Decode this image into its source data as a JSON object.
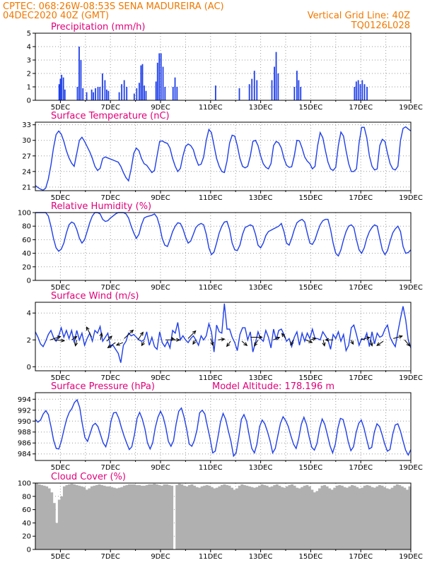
{
  "header": {
    "line1_left": "CPTEC:   068:26W-08:53S   SENA MADUREIRA (AC)",
    "line2_left": "04DEC2020 40Z (GMT)",
    "line2_right": "Vertical Grid Line: 40Z",
    "line3_right": "TQ0126L028"
  },
  "colors": {
    "header": "#f07800",
    "panel_title": "#e0007a",
    "series": "#1f3fe8",
    "cloud": "#b0b0b0",
    "grid": "#9a9a9a",
    "wind_arrow": "#000000"
  },
  "x_tick_labels": [
    "5DEC",
    "7DEC",
    "9DEC",
    "11DEC",
    "13DEC",
    "15DEC",
    "17DEC",
    "19DEC"
  ],
  "chart_data": [
    {
      "type": "bar",
      "id": "precip",
      "title": "Precipitation (mm/h)",
      "ylim": [
        0,
        5
      ],
      "yticks": [
        0,
        1,
        2,
        3,
        4,
        5
      ],
      "grid": true,
      "x_range_days": [
        4.0,
        19.0
      ],
      "bars": [
        [
          4.95,
          1.2
        ],
        [
          5.0,
          1.6
        ],
        [
          5.05,
          1.9
        ],
        [
          5.12,
          1.7
        ],
        [
          5.18,
          0.8
        ],
        [
          5.68,
          1.0
        ],
        [
          5.75,
          4.0
        ],
        [
          5.82,
          3.0
        ],
        [
          5.9,
          0.9
        ],
        [
          6.05,
          0.6
        ],
        [
          6.25,
          0.8
        ],
        [
          6.32,
          0.6
        ],
        [
          6.4,
          0.9
        ],
        [
          6.5,
          1.0
        ],
        [
          6.58,
          1.0
        ],
        [
          6.68,
          2.0
        ],
        [
          6.78,
          1.5
        ],
        [
          6.85,
          0.8
        ],
        [
          6.92,
          0.7
        ],
        [
          7.35,
          0.6
        ],
        [
          7.45,
          1.2
        ],
        [
          7.55,
          1.5
        ],
        [
          7.65,
          1.0
        ],
        [
          7.95,
          0.5
        ],
        [
          8.05,
          0.9
        ],
        [
          8.15,
          1.3
        ],
        [
          8.22,
          2.6
        ],
        [
          8.28,
          2.7
        ],
        [
          8.35,
          1.1
        ],
        [
          8.42,
          0.7
        ],
        [
          8.82,
          1.4
        ],
        [
          8.88,
          2.8
        ],
        [
          8.95,
          3.5
        ],
        [
          9.02,
          3.5
        ],
        [
          9.1,
          2.5
        ],
        [
          9.18,
          1.0
        ],
        [
          9.5,
          1.0
        ],
        [
          9.58,
          1.7
        ],
        [
          9.66,
          1.0
        ],
        [
          11.2,
          1.1
        ],
        [
          12.15,
          0.9
        ],
        [
          12.55,
          1.2
        ],
        [
          12.65,
          1.6
        ],
        [
          12.75,
          2.2
        ],
        [
          12.85,
          1.5
        ],
        [
          13.45,
          1.5
        ],
        [
          13.55,
          2.5
        ],
        [
          13.62,
          3.6
        ],
        [
          13.7,
          2.0
        ],
        [
          14.35,
          1.0
        ],
        [
          14.45,
          2.2
        ],
        [
          14.52,
          1.5
        ],
        [
          14.6,
          1.0
        ],
        [
          16.75,
          1.0
        ],
        [
          16.82,
          1.4
        ],
        [
          16.9,
          1.5
        ],
        [
          16.98,
          1.2
        ],
        [
          17.06,
          1.5
        ],
        [
          17.15,
          1.2
        ],
        [
          17.25,
          1.0
        ]
      ]
    },
    {
      "type": "line",
      "id": "temperature",
      "title": "Surface Temperature (nC)",
      "ylim": [
        20.3,
        33.5
      ],
      "yticks": [
        21,
        24,
        27,
        30,
        33
      ],
      "grid": true,
      "x_range_days": [
        4.0,
        19.0
      ],
      "values": [
        21.3,
        20.9,
        20.6,
        20.4,
        20.8,
        22.5,
        25.2,
        28.5,
        31.1,
        31.8,
        31.2,
        29.8,
        28.0,
        26.6,
        25.6,
        25.0,
        27.5,
        30.0,
        30.6,
        29.8,
        28.8,
        27.8,
        26.5,
        25.0,
        24.2,
        24.6,
        26.5,
        26.8,
        26.6,
        26.4,
        26.2,
        26.0,
        25.8,
        25.0,
        23.8,
        22.8,
        22.2,
        24.5,
        27.5,
        28.5,
        28.0,
        26.5,
        25.5,
        25.2,
        24.5,
        23.8,
        24.2,
        27.0,
        29.8,
        29.9,
        29.6,
        29.4,
        28.5,
        26.5,
        25.0,
        24.0,
        24.6,
        27.0,
        28.8,
        29.3,
        29.0,
        28.2,
        26.5,
        25.2,
        25.4,
        26.8,
        30.0,
        32.1,
        31.5,
        29.0,
        26.5,
        25.0,
        24.0,
        23.8,
        26.0,
        29.5,
        31.0,
        30.8,
        29.0,
        26.5,
        25.0,
        24.7,
        25.0,
        27.0,
        29.8,
        30.0,
        29.0,
        27.0,
        25.5,
        24.8,
        24.5,
        25.5,
        29.0,
        29.8,
        29.5,
        28.5,
        26.5,
        25.2,
        24.8,
        24.9,
        27.0,
        30.0,
        29.9,
        28.5,
        26.8,
        26.0,
        25.5,
        24.5,
        25.0,
        29.0,
        31.5,
        30.5,
        28.0,
        25.8,
        24.5,
        24.2,
        24.8,
        29.0,
        31.6,
        30.8,
        28.0,
        25.5,
        24.0,
        24.0,
        24.5,
        29.5,
        32.5,
        32.5,
        30.5,
        27.0,
        25.0,
        24.3,
        24.5,
        29.0,
        30.2,
        29.8,
        27.5,
        25.5,
        24.5,
        24.3,
        25.0,
        30.0,
        32.3,
        32.6,
        32.2,
        31.8
      ]
    },
    {
      "type": "line",
      "id": "humidity",
      "title": "Relative Humidity (%)",
      "ylim": [
        0,
        100
      ],
      "yticks": [
        0,
        20,
        40,
        60,
        80,
        100
      ],
      "grid": true,
      "x_range_days": [
        4.0,
        19.0
      ],
      "values": [
        100,
        100,
        100,
        100,
        100,
        95,
        80,
        62,
        48,
        43,
        46,
        55,
        70,
        82,
        86,
        84,
        75,
        62,
        55,
        60,
        72,
        85,
        95,
        100,
        100,
        98,
        90,
        87,
        88,
        92,
        95,
        98,
        100,
        100,
        100,
        98,
        92,
        80,
        70,
        62,
        68,
        82,
        92,
        94,
        95,
        96,
        98,
        93,
        80,
        62,
        52,
        50,
        60,
        72,
        80,
        85,
        84,
        76,
        64,
        55,
        58,
        68,
        78,
        82,
        84,
        82,
        68,
        48,
        38,
        42,
        55,
        70,
        80,
        86,
        87,
        75,
        55,
        45,
        44,
        52,
        68,
        78,
        80,
        82,
        80,
        68,
        52,
        48,
        55,
        66,
        72,
        74,
        76,
        78,
        80,
        84,
        72,
        55,
        52,
        62,
        75,
        85,
        88,
        90,
        86,
        70,
        55,
        53,
        60,
        72,
        82,
        88,
        90,
        90,
        75,
        55,
        40,
        36,
        45,
        60,
        72,
        80,
        82,
        78,
        60,
        45,
        40,
        48,
        62,
        72,
        78,
        82,
        80,
        62,
        45,
        38,
        44,
        58,
        70,
        76,
        80,
        72,
        50,
        40,
        41,
        45
      ]
    },
    {
      "type": "line",
      "id": "wind",
      "title": "Surface Wind (m/s)",
      "ylim": [
        -0.3,
        4.8
      ],
      "yticks": [
        0,
        2,
        4
      ],
      "grid": true,
      "x_range_days": [
        4.0,
        19.0
      ],
      "values": [
        2.6,
        2.2,
        1.7,
        1.5,
        1.9,
        2.4,
        2.7,
        2.2,
        1.9,
        2.3,
        2.9,
        2.2,
        2.7,
        2.1,
        2.7,
        1.8,
        2.7,
        2.0,
        2.5,
        1.6,
        2.1,
        2.5,
        1.9,
        2.7,
        2.5,
        3.0,
        1.9,
        2.2,
        2.5,
        1.5,
        1.6,
        1.3,
        1.0,
        0.3,
        1.6,
        1.9,
        2.5,
        2.3,
        2.4,
        2.2,
        2.0,
        1.9,
        2.0,
        2.6,
        1.6,
        2.2,
        1.5,
        1.3,
        2.6,
        1.8,
        1.5,
        1.9,
        1.4,
        2.7,
        2.5,
        3.3,
        2.0,
        2.3,
        2.0,
        1.8,
        2.1,
        2.3,
        2.0,
        1.6,
        2.3,
        2.0,
        2.3,
        3.2,
        2.6,
        1.1,
        3.1,
        2.6,
        2.5,
        4.7,
        2.8,
        2.8,
        2.2,
        1.8,
        1.2,
        2.4,
        2.9,
        2.9,
        2.0,
        2.6,
        1.1,
        1.8,
        2.6,
        2.1,
        1.9,
        2.7,
        2.2,
        1.4,
        2.8,
        2.0,
        2.7,
        2.8,
        2.4,
        1.9,
        2.1,
        1.5,
        2.2,
        2.6,
        1.6,
        2.5,
        1.9,
        2.5,
        2.1,
        2.8,
        2.1,
        2.1,
        2.0,
        2.6,
        2.3,
        2.0,
        1.3,
        2.4,
        2.1,
        2.6,
        1.9,
        2.4,
        1.2,
        1.6,
        2.9,
        3.1,
        2.4,
        1.6,
        2.1,
        2.0,
        2.5,
        1.5,
        2.6,
        1.7,
        2.5,
        2.2,
        2.3,
        2.8,
        3.1,
        2.2,
        1.8,
        1.5,
        2.6,
        3.6,
        4.5,
        3.5,
        2.0,
        1.4
      ],
      "arrows": [
        [
          4.6,
          2.0,
          0.8,
          0.4
        ],
        [
          4.75,
          2.0,
          0.8,
          -0.1
        ],
        [
          5.45,
          2.0,
          0.4,
          0.4
        ],
        [
          5.65,
          2.0,
          -0.1,
          -0.7
        ],
        [
          6.25,
          2.2,
          -0.4,
          1.2
        ],
        [
          6.6,
          2.0,
          0.1,
          0.8
        ],
        [
          6.85,
          1.9,
          0.4,
          0.6
        ],
        [
          7.2,
          1.8,
          -0.6,
          -0.6
        ],
        [
          7.55,
          2.1,
          0.7,
          1.0
        ],
        [
          7.5,
          1.8,
          -0.5,
          -0.3
        ],
        [
          8.1,
          2.0,
          0.4,
          0.9
        ],
        [
          8.35,
          1.9,
          -0.2,
          -0.5
        ],
        [
          9.2,
          2.0,
          1.1,
          0.0
        ],
        [
          9.5,
          2.0,
          -0.1,
          0.3
        ],
        [
          10.1,
          2.1,
          0.6,
          0.9
        ],
        [
          10.4,
          2.0,
          -0.2,
          -0.5
        ],
        [
          11.0,
          2.1,
          0.2,
          -0.8
        ],
        [
          11.3,
          2.0,
          0.5,
          0.1
        ],
        [
          11.8,
          1.9,
          -0.3,
          -0.6
        ],
        [
          12.25,
          1.9,
          0.4,
          -0.5
        ],
        [
          12.6,
          2.2,
          0.9,
          0.0
        ],
        [
          12.9,
          2.0,
          -0.3,
          -0.7
        ],
        [
          13.5,
          2.0,
          0.5,
          0.3
        ],
        [
          14.0,
          2.1,
          -0.3,
          0.6
        ],
        [
          14.3,
          2.0,
          -0.2,
          -0.6
        ],
        [
          14.8,
          2.0,
          0.5,
          -0.3
        ],
        [
          15.0,
          2.0,
          0.4,
          0.2
        ],
        [
          15.5,
          2.0,
          0.1,
          -0.7
        ],
        [
          15.9,
          2.0,
          -0.6,
          0.0
        ],
        [
          16.6,
          2.0,
          0.2,
          -0.5
        ],
        [
          17.0,
          2.0,
          0.7,
          0.3
        ],
        [
          17.4,
          2.0,
          0.1,
          -0.7
        ],
        [
          17.9,
          1.9,
          -0.5,
          -0.5
        ],
        [
          18.3,
          2.1,
          0.7,
          0.3
        ],
        [
          18.75,
          2.0,
          0.4,
          -0.7
        ]
      ]
    },
    {
      "type": "line",
      "id": "pressure",
      "title": "Surface Pressure (hPa)",
      "annotation": "Model Altitude: 178.196 m",
      "ylim": [
        982.8,
        995.2
      ],
      "yticks": [
        984,
        986,
        988,
        990,
        992,
        994
      ],
      "grid": true,
      "x_range_days": [
        4.0,
        19.0
      ],
      "values": [
        990.3,
        989.8,
        990.2,
        991.3,
        991.9,
        991.2,
        989.0,
        986.5,
        985.0,
        984.9,
        986.4,
        988.5,
        990.4,
        991.6,
        992.3,
        993.4,
        993.9,
        992.5,
        989.5,
        987.0,
        986.3,
        987.7,
        989.2,
        989.6,
        989.0,
        987.5,
        986.0,
        985.3,
        987.0,
        990.0,
        991.5,
        991.6,
        990.5,
        988.8,
        987.3,
        986.0,
        984.8,
        985.3,
        987.5,
        990.5,
        991.6,
        990.4,
        988.6,
        986.0,
        984.9,
        986.0,
        988.8,
        990.7,
        991.8,
        990.8,
        988.9,
        986.3,
        985.4,
        986.4,
        989.5,
        991.8,
        992.4,
        990.8,
        988.6,
        985.8,
        985.4,
        986.5,
        988.4,
        991.5,
        992.0,
        991.3,
        989.0,
        986.8,
        984.2,
        984.5,
        987.0,
        989.8,
        991.4,
        990.3,
        988.2,
        986.3,
        983.6,
        984.2,
        987.0,
        990.3,
        991.2,
        990.0,
        987.4,
        985.0,
        984.2,
        985.8,
        989.0,
        990.2,
        989.5,
        988.1,
        986.4,
        984.2,
        985.0,
        987.3,
        989.6,
        990.8,
        990.1,
        989.0,
        987.3,
        985.8,
        985.0,
        986.8,
        989.4,
        990.7,
        989.4,
        987.1,
        985.2,
        984.7,
        985.9,
        988.6,
        990.4,
        989.4,
        987.5,
        985.5,
        984.2,
        985.7,
        988.7,
        990.5,
        990.3,
        988.5,
        986.2,
        984.6,
        985.3,
        987.9,
        989.6,
        990.2,
        988.8,
        986.8,
        984.9,
        985.2,
        988.0,
        989.5,
        989.0,
        987.5,
        985.8,
        984.5,
        984.8,
        987.5,
        989.3,
        989.5,
        988.2,
        986.4,
        984.7,
        983.8,
        984.8
      ]
    },
    {
      "type": "bar",
      "id": "cloud",
      "title": "Cloud Cover (%)",
      "ylim": [
        0,
        100
      ],
      "yticks": [
        0,
        20,
        40,
        60,
        80,
        100
      ],
      "grid": true,
      "x_range_days": [
        4.0,
        19.0
      ],
      "values": [
        100,
        98,
        97,
        96,
        95,
        92,
        86,
        70,
        40,
        75,
        80,
        95,
        97,
        98,
        99,
        98,
        97,
        96,
        95,
        94,
        90,
        92,
        95,
        96,
        97,
        98,
        97,
        96,
        95,
        95,
        94,
        93,
        92,
        93,
        94,
        96,
        97,
        98,
        98,
        98,
        97,
        97,
        96,
        96,
        97,
        98,
        98,
        99,
        98,
        97,
        96,
        98,
        98,
        97,
        96,
        0,
        97,
        99,
        98,
        96,
        95,
        97,
        98,
        96,
        94,
        93,
        95,
        96,
        97,
        96,
        94,
        92,
        93,
        95,
        97,
        98,
        97,
        96,
        93,
        90,
        92,
        96,
        98,
        97,
        96,
        95,
        94,
        93,
        94,
        96,
        98,
        97,
        96,
        94,
        95,
        97,
        98,
        96,
        94,
        93,
        95,
        97,
        98,
        96,
        93,
        92,
        94,
        96,
        97,
        95,
        90,
        86,
        88,
        92,
        96,
        97,
        95,
        92,
        90,
        93,
        96,
        97,
        96,
        94,
        93,
        95,
        97,
        96,
        94,
        92,
        93,
        96,
        97,
        96,
        94,
        93,
        95,
        97,
        96,
        94,
        92,
        91,
        93,
        96,
        98,
        97,
        95,
        93,
        90,
        95
      ]
    }
  ]
}
